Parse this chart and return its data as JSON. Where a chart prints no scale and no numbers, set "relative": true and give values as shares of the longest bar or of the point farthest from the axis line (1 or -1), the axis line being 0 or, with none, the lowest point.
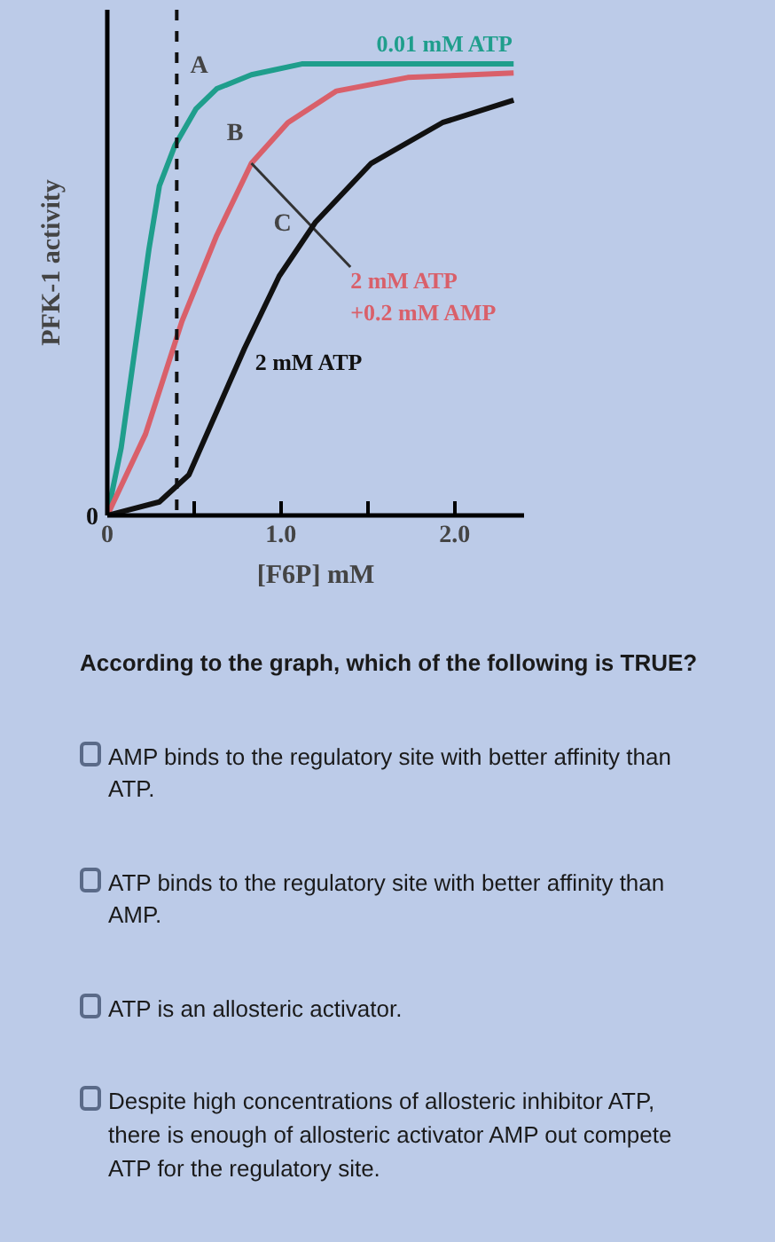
{
  "chart_data": {
    "type": "line",
    "relative": true,
    "xlabel": "[F6P] mM",
    "ylabel": "PFK-1 activity",
    "xlim": [
      0,
      2.4
    ],
    "xticks": [
      0,
      {
        "value": 0.5,
        "label": null
      },
      {
        "value": 1,
        "label": "1.0"
      },
      {
        "value": 1.5,
        "label": null
      },
      {
        "value": 2,
        "label": "2.0"
      }
    ],
    "grid": false,
    "legend": false,
    "marker": "none",
    "line_style": "solid",
    "series": [
      {
        "name": "0.01 mM ATP",
        "color": "#1f9e8c",
        "x": [
          0,
          0.08,
          0.16,
          0.24,
          0.3,
          0.39,
          0.51,
          0.63,
          0.83,
          1.12,
          2.34
        ],
        "values": [
          0,
          0.15,
          0.37,
          0.59,
          0.73,
          0.82,
          0.9,
          0.945,
          0.976,
          1.0,
          1.0
        ]
      },
      {
        "name": "2 mM ATP\n+0.2 mM AMP",
        "color": "#d9606a",
        "x": [
          0,
          0.22,
          0.43,
          0.63,
          0.83,
          1.04,
          1.32,
          1.73,
          2.34
        ],
        "values": [
          0,
          0.18,
          0.43,
          0.62,
          0.78,
          0.87,
          0.94,
          0.97,
          0.98
        ]
      },
      {
        "name": "2 mM ATP",
        "color": "#111111",
        "x": [
          0,
          0.3,
          0.47,
          0.63,
          0.79,
          0.99,
          1.2,
          1.52,
          1.93,
          2.34
        ],
        "values": [
          0,
          0.03,
          0.09,
          0.23,
          0.37,
          0.53,
          0.65,
          0.78,
          0.87,
          0.92
        ]
      }
    ],
    "ref_lines": [
      {
        "axis": "x",
        "value": 0.4,
        "color": "#111111",
        "line_style": "dashed"
      }
    ],
    "annotations": [
      {
        "text": "A",
        "x": 0.6,
        "y": 0.95
      },
      {
        "text": "B",
        "x": 0.81,
        "y": 0.8
      },
      {
        "text": "C",
        "x": 1.08,
        "y": 0.6
      },
      "0",
      "According to the graph, which of the following is TRUE?",
      "AMP binds to the regulatory site with better affinity than ATP.",
      "ATP binds to the regulatory site with better affinity than AMP.",
      "ATP is an allosteric activator.",
      "Despite high concentrations of allosteric inhibitor ATP, there is enough of allosteric activator  AMP out compete ATP for the regulatory site."
    ]
  }
}
